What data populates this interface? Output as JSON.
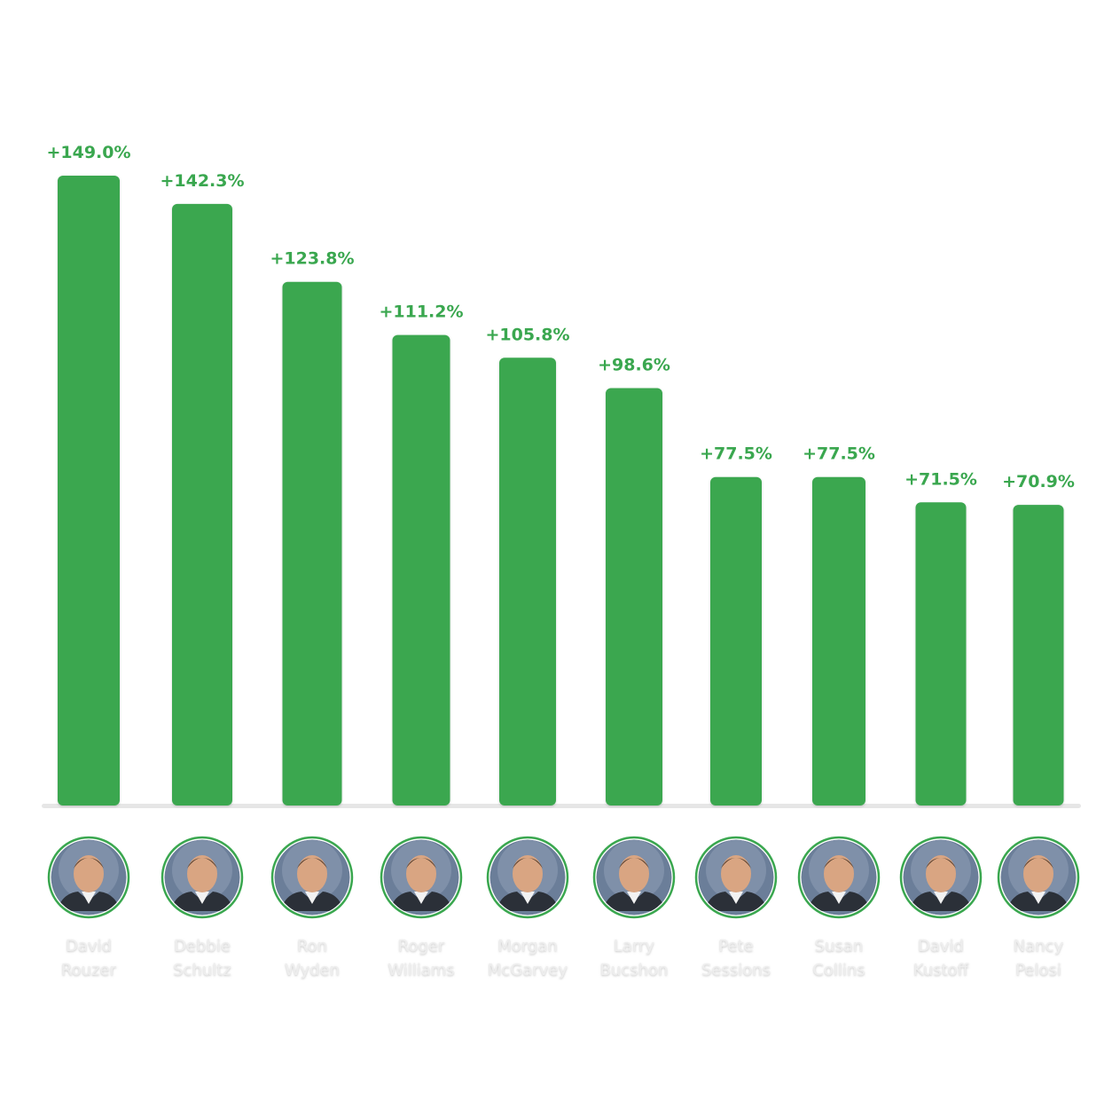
{
  "chart_data": {
    "type": "bar",
    "title": "",
    "xlabel": "",
    "ylabel": "",
    "ylim": [
      0,
      149
    ],
    "grid": false,
    "legend": "none",
    "colors": {
      "bar": "#3aa74f",
      "value_label": "#3aa74f",
      "name_label": "#eeeeee",
      "name_label_shadow": "#d8d8d8",
      "baseline": "#e6e6e6",
      "avatar_ring": "#3aa74f"
    },
    "categories": [
      [
        "David",
        "Rouzer"
      ],
      [
        "Debbie",
        "Schultz"
      ],
      [
        "Ron",
        "Wyden"
      ],
      [
        "Roger",
        "Williams"
      ],
      [
        "Morgan",
        "McGarvey"
      ],
      [
        "Larry",
        "Bucshon"
      ],
      [
        "Pete",
        "Sessions"
      ],
      [
        "Susan",
        "Collins"
      ],
      [
        "David",
        "Kustoff"
      ],
      [
        "Nancy",
        "Pelosi"
      ]
    ],
    "values": [
      149.0,
      142.3,
      123.8,
      111.2,
      105.8,
      98.6,
      77.5,
      77.5,
      71.5,
      70.9
    ],
    "value_labels": [
      "+149.0%",
      "+142.3%",
      "+123.8%",
      "+111.2%",
      "+105.8%",
      "+98.6%",
      "+77.5%",
      "+77.5%",
      "+71.5%",
      "+70.9%"
    ],
    "avatar_icons": [
      "portrait-icon",
      "portrait-icon",
      "portrait-icon",
      "portrait-icon",
      "portrait-icon",
      "portrait-icon",
      "portrait-icon",
      "portrait-icon",
      "portrait-icon",
      "portrait-icon"
    ]
  }
}
